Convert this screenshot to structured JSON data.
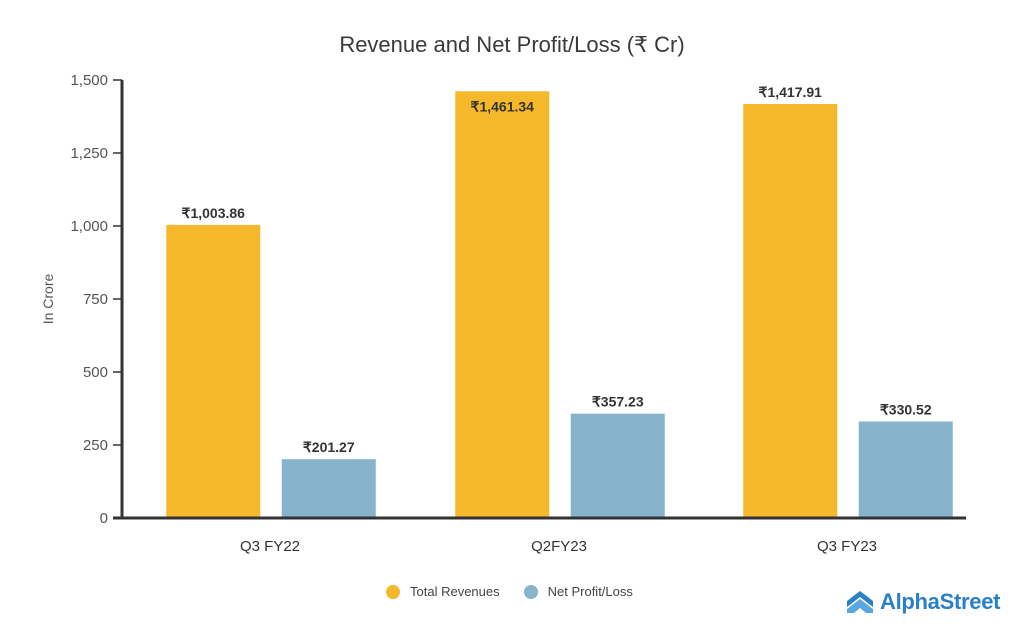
{
  "chart_data": {
    "type": "bar",
    "title": "Revenue and Net Profit/Loss (₹ Cr)",
    "xlabel": "",
    "ylabel": "In Crore",
    "ylim": [
      0,
      1500
    ],
    "yticks": [
      0,
      250,
      500,
      750,
      1000,
      1250,
      1500
    ],
    "ytick_labels": [
      "0",
      "250",
      "500",
      "750",
      "1,000",
      "1,250",
      "1,500"
    ],
    "grid": false,
    "legend_position": "bottom",
    "categories": [
      "Q3 FY22",
      "Q2FY23",
      "Q3 FY23"
    ],
    "series": [
      {
        "name": "Total Revenues",
        "color": "#F5B82A",
        "values": [
          1003.86,
          1461.34,
          1417.91
        ],
        "labels": [
          "₹1,003.86",
          "₹1,461.34",
          "₹1,417.91"
        ],
        "label_inside": [
          false,
          true,
          false
        ]
      },
      {
        "name": "Net Profit/Loss",
        "color": "#86B4CA",
        "values": [
          201.27,
          357.23,
          330.52
        ],
        "labels": [
          "₹201.27",
          "₹357.23",
          "₹330.52"
        ],
        "label_inside": [
          false,
          false,
          false
        ]
      }
    ]
  },
  "branding": {
    "logo_text": "AlphaStreet",
    "logo_color": "#2A7FC9"
  }
}
